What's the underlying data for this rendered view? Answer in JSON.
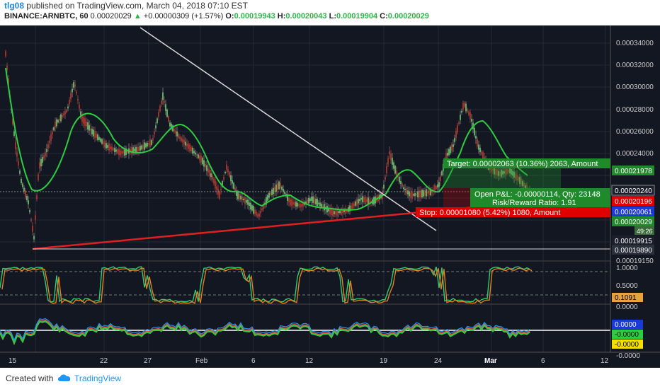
{
  "header": {
    "author": "tlg08",
    "published_text": "published on TradingView.com, March 04, 2018 07:10 EST",
    "symbol": "BINANCE:ARNBTC, 60",
    "last_price": "0.00020029",
    "change": "+0.00000309 (+1.57%)",
    "o_label": "O:",
    "o_value": "0.00019943",
    "h_label": "H:",
    "h_value": "0.00020043",
    "l_label": "L:",
    "l_value": "0.00019904",
    "c_label": "C:",
    "c_value": "0.00020029"
  },
  "price_axis": {
    "ticks": [
      "0.00034000",
      "0.00032000",
      "0.00030000",
      "0.00028000",
      "0.00026000",
      "0.00024000",
      "0.00022000"
    ],
    "ticks_lower": [
      "0.00019890",
      "0.00019150"
    ]
  },
  "price_labels": {
    "l1": "0.00021978",
    "l2": "0.00020240",
    "l3": "0.00020196",
    "l4": "0.00020061",
    "l5": "0.00020029",
    "l6": "49:26",
    "l7": "0.00019915",
    "l8": "0.00019890",
    "l9": "0.00019150"
  },
  "position_tool": {
    "target": "Target: 0.00002063 (10.36%) 2063, Amount",
    "open_pl": "Open P&L: -0.00000114, Qty: 23148",
    "rr": "Risk/Reward Ratio: 1.91",
    "stop": "Stop: 0.00001080 (5.42%) 1080, Amount"
  },
  "stoch_axis": {
    "t1": "1.0000",
    "t2": "0.5000",
    "t3": "0.1091",
    "t4": "0.0000"
  },
  "osc_axis": {
    "t1": "0.0000",
    "t2": "-0.0000",
    "t3": "-0.0000",
    "t4": "-0.0000"
  },
  "time_axis": {
    "labels": [
      "15",
      "22",
      "27",
      "Feb",
      "6",
      "12",
      "19",
      "24",
      "Mar",
      "6",
      "12"
    ]
  },
  "footer": {
    "created": "Created with",
    "brand": "TradingView"
  },
  "colors": {
    "background": "#131722",
    "ma_line": "#2ecc40",
    "support_line": "#e02020",
    "trend_line": "#d8d8d8",
    "target_box": "#1f8a2a",
    "stop_box": "#e00000"
  }
}
